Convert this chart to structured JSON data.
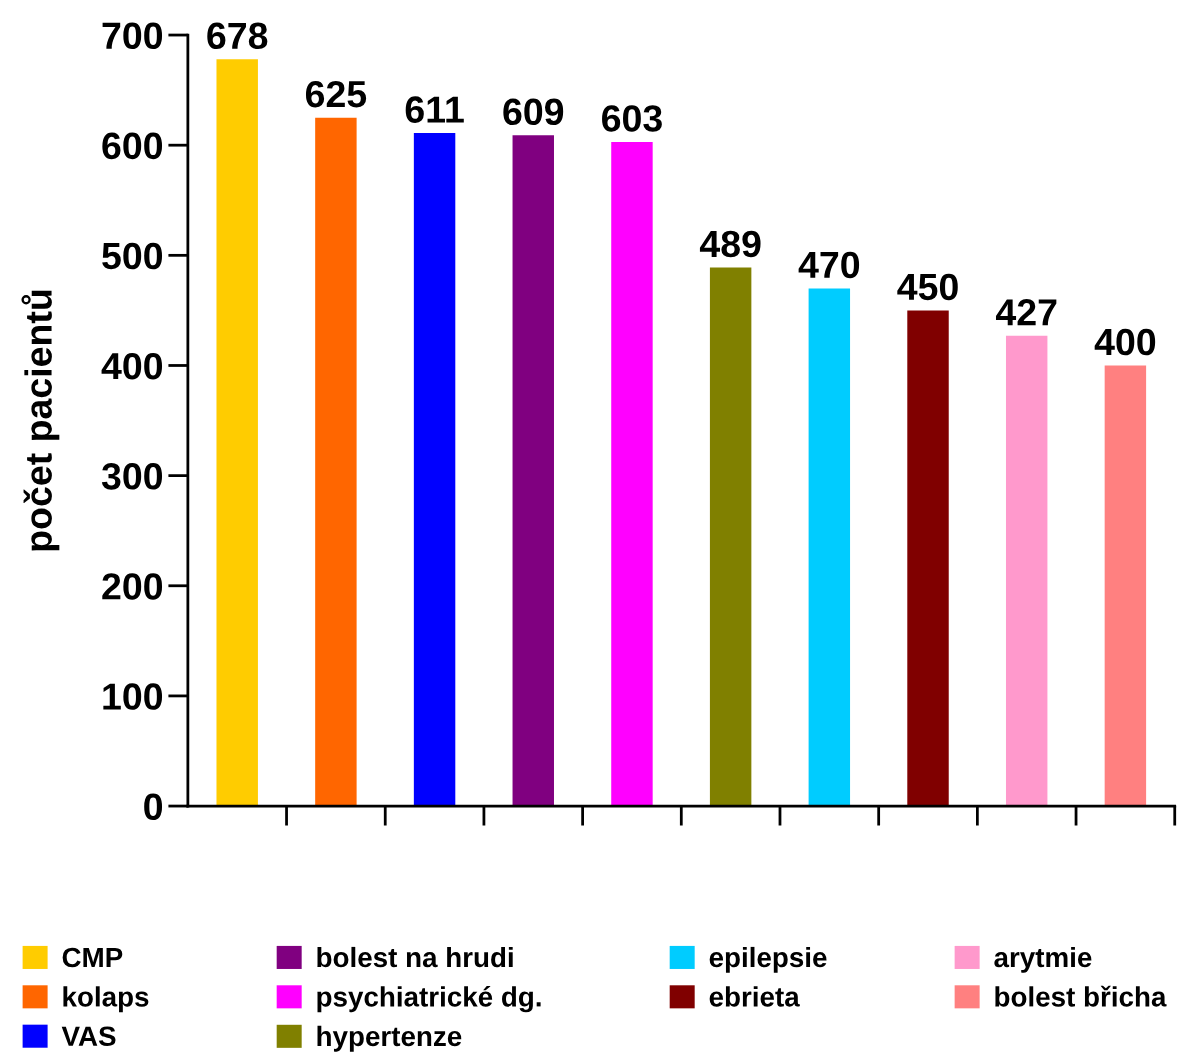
{
  "chart_data": {
    "type": "bar",
    "ylabel": "počet pacientů",
    "categories": [
      null,
      null,
      null,
      null,
      null,
      null,
      null,
      null,
      null,
      null
    ],
    "series": [
      {
        "name": "CMP",
        "color": "#ffcc00",
        "values": [
          678,
          null,
          null,
          null,
          null,
          null,
          null,
          null,
          null,
          null
        ]
      },
      {
        "name": "kolaps",
        "color": "#ff6600",
        "values": [
          null,
          625,
          null,
          null,
          null,
          null,
          null,
          null,
          null,
          null
        ]
      },
      {
        "name": "VAS",
        "color": "#0000ff",
        "values": [
          null,
          null,
          611,
          null,
          null,
          null,
          null,
          null,
          null,
          null
        ]
      },
      {
        "name": "bolest na hrudi",
        "color": "#800080",
        "values": [
          null,
          null,
          null,
          609,
          null,
          null,
          null,
          null,
          null,
          null
        ]
      },
      {
        "name": "psychiatrické dg.",
        "color": "#ff00ff",
        "values": [
          null,
          null,
          null,
          null,
          603,
          null,
          null,
          null,
          null,
          null
        ]
      },
      {
        "name": "hypertenze",
        "color": "#808000",
        "values": [
          null,
          null,
          null,
          null,
          null,
          489,
          null,
          null,
          null,
          null
        ]
      },
      {
        "name": "epilepsie",
        "color": "#00ccff",
        "values": [
          null,
          null,
          null,
          null,
          null,
          null,
          470,
          null,
          null,
          null
        ]
      },
      {
        "name": "ebrieta",
        "color": "#800000",
        "values": [
          null,
          null,
          null,
          null,
          null,
          null,
          null,
          450,
          null,
          null
        ]
      },
      {
        "name": "arytmie",
        "color": "#ff99cc",
        "values": [
          null,
          null,
          null,
          null,
          null,
          null,
          null,
          null,
          427,
          null
        ]
      },
      {
        "name": "bolest břicha",
        "color": "#ff8080",
        "values": [
          null,
          null,
          null,
          null,
          null,
          null,
          null,
          null,
          null,
          400
        ]
      }
    ],
    "ylim": [
      0,
      700
    ],
    "yticks": [
      0,
      100,
      200,
      300,
      400,
      500,
      600,
      700
    ],
    "data_labels": true,
    "legend": "bottom",
    "tick_labels": "y",
    "grid": false
  }
}
